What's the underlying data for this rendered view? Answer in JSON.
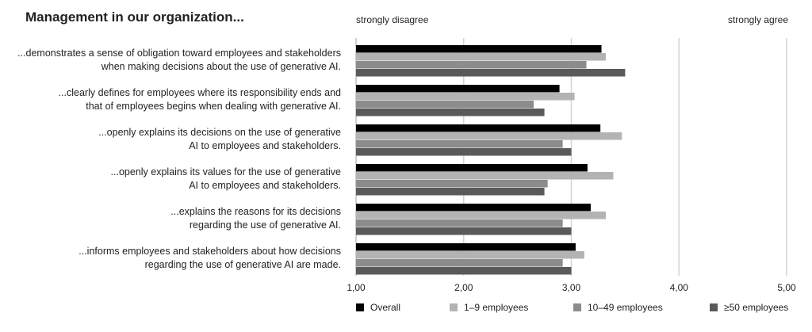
{
  "chart_data": {
    "type": "bar",
    "orientation": "horizontal",
    "title": "Management in our organization...",
    "scale_labels": {
      "left": "strongly disagree",
      "right": "strongly agree"
    },
    "categories": [
      "...demonstrates a sense of obligation toward employees and stakeholders when making decisions about the use of generative AI.",
      "...clearly defines for employees where its responsibility ends and that of employees begins when dealing with generative AI.",
      "...openly explains its decisions on the use of generative AI to employees and stakeholders.",
      "...openly explains its values for the use of generative AI to employees and stakeholders.",
      "...explains the reasons for its decisions regarding the use of generative AI.",
      "...informs employees and stakeholders about how decisions regarding the use of generative AI are made."
    ],
    "category_lines": [
      [
        "...demonstrates a sense of obligation toward employees and stakeholders",
        "when making decisions about the use of generative AI."
      ],
      [
        "...clearly defines for employees where its responsibility ends and",
        "that of employees begins when dealing with generative AI."
      ],
      [
        "...openly explains its decisions on the use of generative",
        "AI to employees and stakeholders."
      ],
      [
        "...openly explains its values for the use of generative",
        "AI to employees and stakeholders."
      ],
      [
        "...explains the reasons for its decisions",
        "regarding the use of generative AI."
      ],
      [
        "...informs employees and stakeholders about how decisions",
        "regarding the use of generative AI are made."
      ]
    ],
    "series": [
      {
        "name": "Overall",
        "color": "#000000",
        "values": [
          3.28,
          2.89,
          3.27,
          3.15,
          3.18,
          3.04
        ]
      },
      {
        "name": "1–9 employees",
        "color": "#b3b3b3",
        "values": [
          3.32,
          3.03,
          3.47,
          3.39,
          3.32,
          3.12
        ]
      },
      {
        "name": "10–49 employees",
        "color": "#8c8c8c",
        "values": [
          3.14,
          2.65,
          2.92,
          2.78,
          2.92,
          2.92
        ]
      },
      {
        "name": "≥50 employees",
        "color": "#5a5a5a",
        "values": [
          3.5,
          2.75,
          3.0,
          2.75,
          3.0,
          3.0
        ]
      }
    ],
    "xlim": [
      1,
      5
    ],
    "xticks": [
      "1,00",
      "2,00",
      "3,00",
      "4,00",
      "5,00"
    ],
    "grid": true,
    "legend_position": "bottom"
  }
}
